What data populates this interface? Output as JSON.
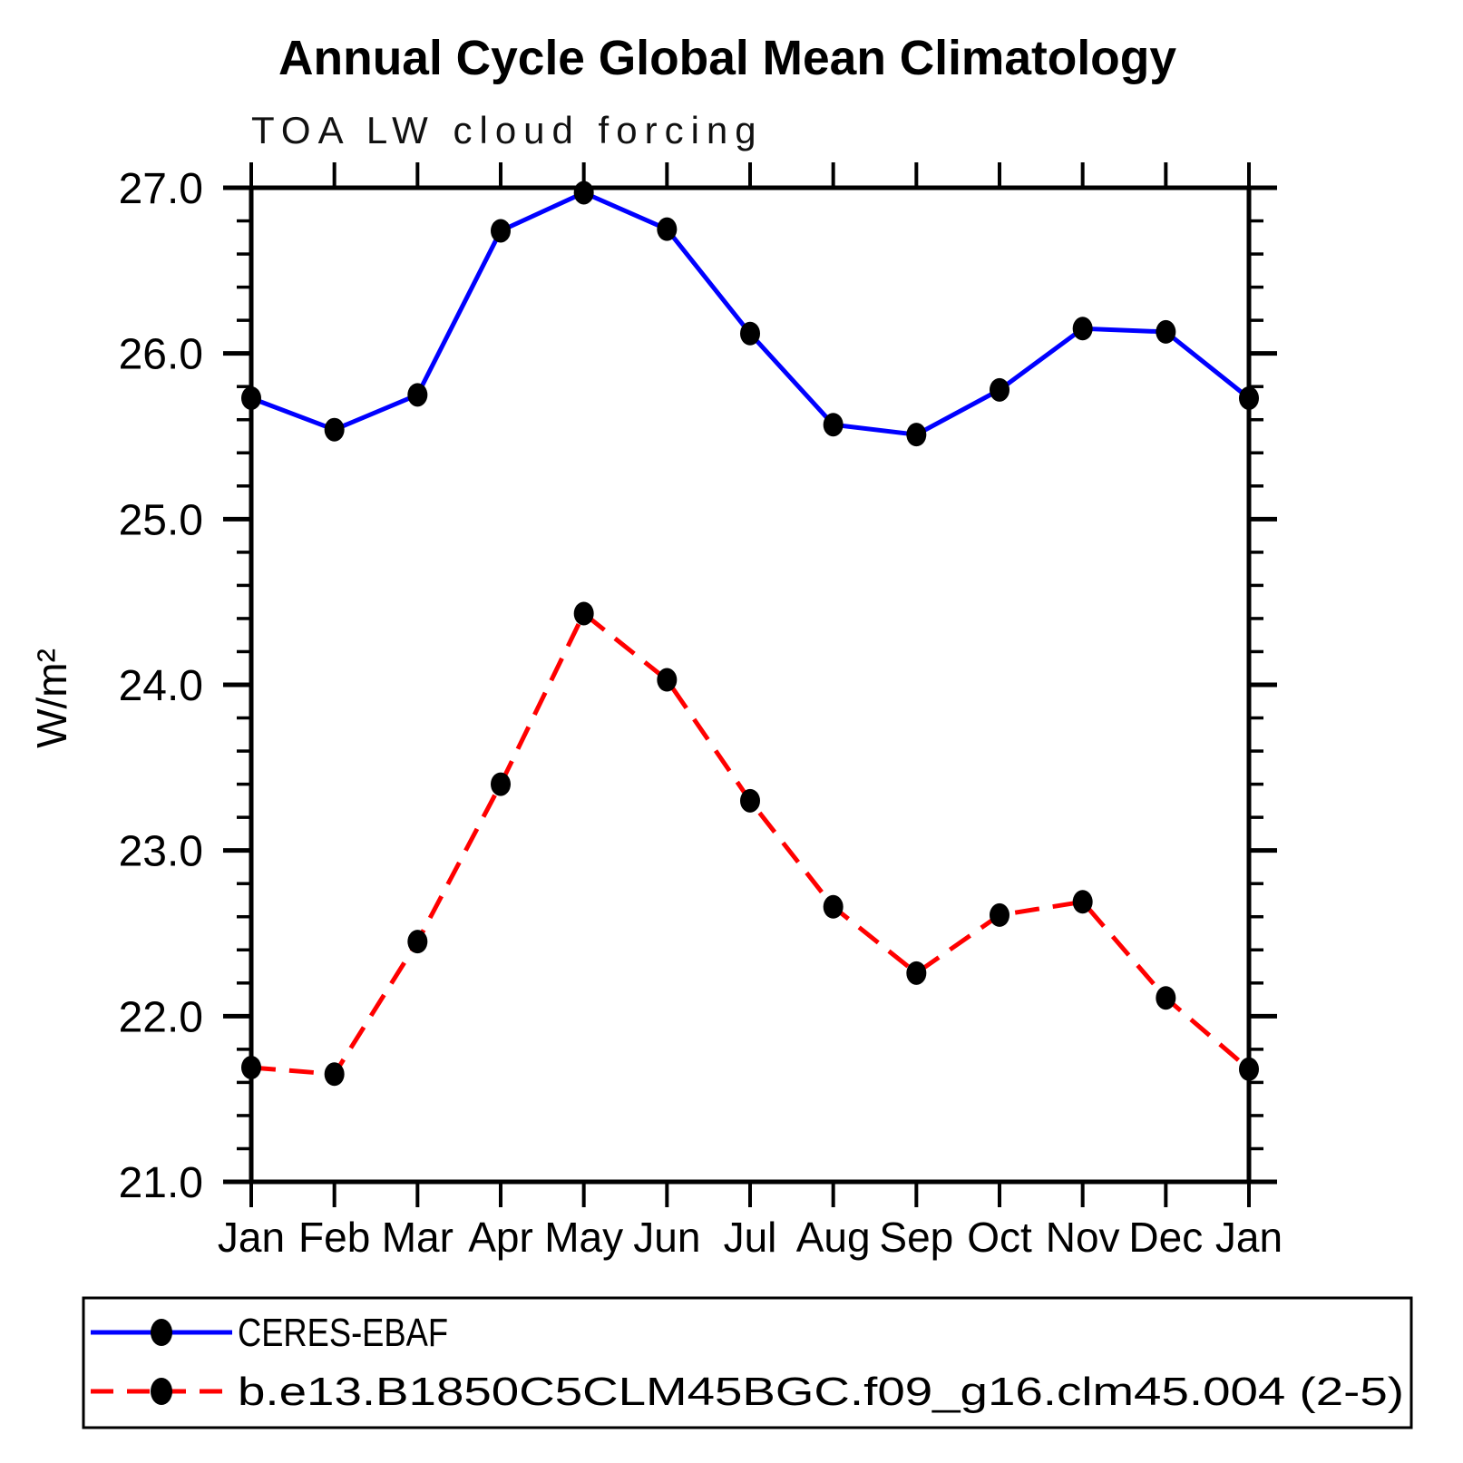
{
  "chart_data": {
    "type": "line",
    "title": "Annual Cycle Global Mean Climatology",
    "subtitle": "TOA LW cloud forcing",
    "ylabel": "W/m²",
    "xlabel": "",
    "categories": [
      "Jan",
      "Feb",
      "Mar",
      "Apr",
      "May",
      "Jun",
      "Jul",
      "Aug",
      "Sep",
      "Oct",
      "Nov",
      "Dec",
      "Jan"
    ],
    "ylim": [
      21.0,
      27.0
    ],
    "ytick_major_interval": 1.0,
    "ytick_minor_interval": 0.2,
    "ytick_labels": [
      "21.0",
      "22.0",
      "23.0",
      "24.0",
      "25.0",
      "26.0",
      "27.0"
    ],
    "grid": false,
    "legend_position": "bottom-outside",
    "axis_color": "#000000",
    "background_color": "#ffffff",
    "series": [
      {
        "name": "CERES-EBAF",
        "color": "#0000ff",
        "line_style": "solid",
        "marker": "circle",
        "marker_color": "#000000",
        "values": [
          25.73,
          25.54,
          25.75,
          26.74,
          26.97,
          26.75,
          26.12,
          25.57,
          25.51,
          25.78,
          26.15,
          26.13,
          25.73
        ]
      },
      {
        "name": "b.e13.B1850C5CLM45BGC.f09_g16.clm45.004 (2-5)",
        "color": "#ff0000",
        "line_style": "dashed",
        "marker": "circle",
        "marker_color": "#000000",
        "values": [
          21.69,
          21.65,
          22.45,
          23.4,
          24.43,
          24.03,
          23.3,
          22.66,
          22.26,
          22.61,
          22.69,
          22.11,
          21.68
        ]
      }
    ]
  }
}
